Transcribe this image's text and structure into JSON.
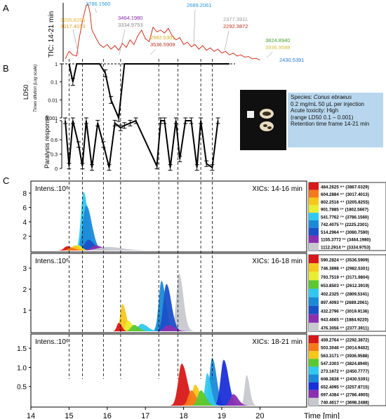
{
  "panel_labels": {
    "a": "A",
    "b": "B",
    "c": "C"
  },
  "info": {
    "species_label": "Species:",
    "species": "Conus ebraeus",
    "dose": "0.2 mg/mL 50 µL per injection",
    "toxicity": "Acute toxicity: High",
    "range": "(range LD50 0.1 – 0.001)",
    "time_frame": "Retention time frame 14-21 min"
  },
  "colors": {
    "tic": "#d03020",
    "axis": "#000000",
    "info_bg": "#b8d7ee"
  },
  "chart_data": [
    {
      "type": "line",
      "panel": "A",
      "ylabel": "TIC: 14-21 min",
      "xlim": [
        14,
        21
      ],
      "x": [
        14.9,
        15.0,
        15.1,
        15.2,
        15.25,
        15.35,
        15.45,
        15.5,
        15.55,
        15.6,
        15.7,
        15.8,
        15.9,
        16.0,
        16.1,
        16.2,
        16.3,
        16.4,
        16.5,
        16.6,
        16.7,
        16.8,
        16.9,
        17.0,
        17.1,
        17.2,
        17.3,
        17.4,
        17.5,
        17.6,
        17.7,
        17.8,
        17.9,
        18.0,
        18.1,
        18.2,
        18.3,
        18.4,
        18.5,
        18.6,
        18.7,
        18.8,
        18.9,
        19.0,
        19.1,
        19.2,
        19.3,
        19.4,
        19.5,
        19.6,
        19.7,
        19.8,
        19.9,
        20.0
      ],
      "y": [
        0.05,
        0.18,
        0.12,
        0.1,
        0.35,
        0.7,
        0.98,
        1.0,
        0.85,
        0.55,
        0.42,
        0.3,
        0.25,
        0.3,
        0.22,
        0.28,
        0.2,
        0.32,
        0.25,
        0.38,
        0.3,
        0.45,
        0.55,
        0.4,
        0.35,
        0.6,
        0.52,
        0.55,
        0.5,
        0.58,
        0.45,
        0.38,
        0.42,
        0.3,
        0.34,
        0.26,
        0.3,
        0.22,
        0.28,
        0.2,
        0.24,
        0.18,
        0.22,
        0.15,
        0.18,
        0.12,
        0.15,
        0.1,
        0.12,
        0.08,
        0.09,
        0.05,
        0.06,
        0.03
      ],
      "annotations": [
        {
          "x": 15.0,
          "label": "3205.8255",
          "color": "#e8b030"
        },
        {
          "x": 15.0,
          "label": "3017.4013",
          "color": "#e0a020"
        },
        {
          "x": 15.55,
          "label": "3786.1560",
          "color": "#2a9ad8"
        },
        {
          "x": 15.95,
          "label": "3464.1980",
          "color": "#8a2aa8"
        },
        {
          "x": 15.95,
          "label": "3334.9753",
          "color": "#8a8a8a"
        },
        {
          "x": 16.4,
          "label": "2982.5301",
          "color": "#d0b020"
        },
        {
          "x": 16.4,
          "label": "3536.5909",
          "color": "#c03020"
        },
        {
          "x": 17.4,
          "label": "2689.2061",
          "color": "#2a9ad8"
        },
        {
          "x": 18.0,
          "label": "2377.3911",
          "color": "#9a9a9a"
        },
        {
          "x": 18.0,
          "label": "2292.3872",
          "color": "#c03020"
        },
        {
          "x": 18.9,
          "label": "3824.8940",
          "color": "#4aa030"
        },
        {
          "x": 18.9,
          "label": "3936.9588",
          "color": "#d0c040"
        },
        {
          "x": 19.25,
          "label": "2430.5391",
          "color": "#2a7ad0"
        }
      ]
    },
    {
      "type": "line",
      "panel": "B-top",
      "ylabel": "LD50",
      "ylabel_sub": "Times dilution (Log scale)",
      "yscale": "log",
      "yticks": [
        "1",
        "0.1",
        "0.01",
        "0.001"
      ],
      "x": [
        15.0,
        15.1,
        15.2,
        15.35,
        15.8,
        15.95,
        16.1,
        16.3,
        16.45,
        17.4,
        18.0,
        18.7,
        19.2
      ],
      "y": [
        1,
        0.1,
        1,
        1,
        1,
        0.3,
        0.01,
        0.001,
        1,
        1,
        1,
        1,
        1
      ]
    },
    {
      "type": "line",
      "panel": "B-bottom",
      "ylabel": "Paralysis response",
      "yticks": [
        "1",
        "0.6",
        "0.3",
        "0"
      ],
      "x": [
        14.9,
        15.0,
        15.1,
        15.25,
        15.35,
        15.45,
        15.6,
        15.75,
        15.9,
        16.05,
        16.2,
        16.35,
        16.45,
        16.6,
        16.75,
        17.3,
        17.4,
        17.5,
        17.65,
        17.8,
        17.9,
        18.05,
        18.2,
        18.35,
        18.45,
        18.6,
        18.75,
        18.9
      ],
      "y": [
        1,
        0.05,
        1,
        0.5,
        0.05,
        1,
        0.02,
        0.95,
        0.5,
        0.02,
        0.95,
        0.85,
        0.9,
        0.95,
        1,
        0.05,
        1,
        1,
        0.02,
        1,
        0.2,
        1,
        1,
        0.02,
        1,
        0.1,
        0.02,
        1
      ]
    },
    {
      "type": "area",
      "panel": "C-1",
      "ylabel": "Intens.:10⁶",
      "title": "XICs: 14-16 min",
      "yticks": [
        "2",
        "4",
        "6",
        "8"
      ],
      "ylim": [
        0,
        8.5
      ],
      "series": [
        {
          "name": "484.2625 ⁸⁺ (3867.0329)",
          "color": "#d81818",
          "center": 14.95,
          "height": 0.6,
          "width": 0.08
        },
        {
          "name": "604.2884 ⁵⁺ (3017.4013)",
          "color": "#f47a1a",
          "center": 15.05,
          "height": 0.4,
          "width": 0.08
        },
        {
          "name": "802.2516 ⁴⁺ (3205.8255)",
          "color": "#f5c81a",
          "center": 15.15,
          "height": 0.7,
          "width": 0.08
        },
        {
          "name": "901.7885 ²⁺ (1802.5667)",
          "color": "#e8ee30",
          "center": 15.22,
          "height": 0.8,
          "width": 0.07
        },
        {
          "name": "541.7762 ⁷⁺ (3786.1560)",
          "color": "#30c8f0",
          "center": 15.38,
          "height": 8.2,
          "width": 0.07
        },
        {
          "name": "742.4075 ³⁺ (2225.2301)",
          "color": "#1a8ad8",
          "center": 15.45,
          "height": 6.3,
          "width": 0.09
        },
        {
          "name": "514.2964 ⁶⁺ (3080.7590)",
          "color": "#1a50c8",
          "center": 15.5,
          "height": 1.5,
          "width": 0.1
        },
        {
          "name": "1155.3772 ³⁺ (3464.1980)",
          "color": "#8a30b0",
          "center": 15.7,
          "height": 0.7,
          "width": 0.12
        },
        {
          "name": "1112.2914 ³⁺ (3334.9753)",
          "color": "#c8c8d0",
          "center": 16.0,
          "height": 0.5,
          "width": 0.25
        }
      ]
    },
    {
      "type": "area",
      "panel": "C-2",
      "ylabel": "Intens.:10⁶",
      "title": "XICs: 16-18 min",
      "yticks": [
        "1",
        "2",
        "3"
      ],
      "ylim": [
        0,
        3.3
      ],
      "series": [
        {
          "name": "590.2824 ⁶⁺ (3536.5909)",
          "color": "#d81818",
          "center": 16.3,
          "height": 0.4,
          "width": 0.05
        },
        {
          "name": "746.3898 ⁴⁺ (2982.5301)",
          "color": "#f5c81a",
          "center": 16.4,
          "height": 1.3,
          "width": 0.06
        },
        {
          "name": "793.7519 ⁴⁺ (3171.9804)",
          "color": "#e8ee30",
          "center": 16.55,
          "height": 0.5,
          "width": 0.07
        },
        {
          "name": "653.8503 ⁴⁺ (2612.3919)",
          "color": "#5ac830",
          "center": 16.7,
          "height": 0.3,
          "width": 0.08
        },
        {
          "name": "402.2325 ⁷⁺ (2809.5341)",
          "color": "#30c8f0",
          "center": 16.9,
          "height": 0.35,
          "width": 0.1
        },
        {
          "name": "897.4093 ³⁺ (2689.2061)",
          "color": "#1a8ad8",
          "center": 17.42,
          "height": 2.4,
          "width": 0.07
        },
        {
          "name": "432.2796 ⁷⁺ (3019.9136)",
          "color": "#1a50c8",
          "center": 17.55,
          "height": 2.25,
          "width": 0.08
        },
        {
          "name": "943.4665 ²⁺ (1884.9220)",
          "color": "#8a30b0",
          "center": 17.6,
          "height": 0.3,
          "width": 0.1
        },
        {
          "name": "476.3056 ⁵⁺ (2377.3911)",
          "color": "#c8c8d0",
          "center": 17.88,
          "height": 2.75,
          "width": 0.07
        }
      ]
    },
    {
      "type": "area",
      "panel": "C-3",
      "ylabel": "Intens.:10⁶",
      "title": "XICs: 18-21 min",
      "yticks": [
        "0.5",
        "1.0",
        "1.5"
      ],
      "ylim": [
        0,
        1.65
      ],
      "series": [
        {
          "name": "459.2764 ⁵⁺ (2292.3872)",
          "color": "#d81818",
          "center": 17.95,
          "height": 1.1,
          "width": 0.09
        },
        {
          "name": "503.3046 ⁶⁺ (3014.9402)",
          "color": "#f47a1a",
          "center": 18.2,
          "height": 0.4,
          "width": 0.08
        },
        {
          "name": "563.3171 ⁷⁺ (3936.9588)",
          "color": "#f5c81a",
          "center": 18.3,
          "height": 0.55,
          "width": 0.08
        },
        {
          "name": "547.3303 ⁷⁺ (3824.8940)",
          "color": "#5ac830",
          "center": 18.45,
          "height": 0.4,
          "width": 0.08
        },
        {
          "name": "273.1672 ⁹⁺ (2450.7777)",
          "color": "#30c8f0",
          "center": 18.62,
          "height": 0.85,
          "width": 0.06
        },
        {
          "name": "608.3838 ⁴⁺ (2430.5391)",
          "color": "#1a8ad8",
          "center": 18.75,
          "height": 1.25,
          "width": 0.07
        },
        {
          "name": "652.4095 ⁵⁺ (3257.8715)",
          "color": "#1a30d8",
          "center": 19.05,
          "height": 1.2,
          "width": 0.08
        },
        {
          "name": "697.4384 ⁴⁺ (2786.4905)",
          "color": "#8a30b0",
          "center": 19.3,
          "height": 0.3,
          "width": 0.08
        },
        {
          "name": "740.4617 ⁵⁺ (3698.2488)",
          "color": "#c8c8d0",
          "center": 19.65,
          "height": 0.8,
          "width": 0.05
        }
      ]
    }
  ],
  "x_axis": {
    "ticks": [
      "14",
      "15",
      "16",
      "17",
      "18",
      "19",
      "20"
    ],
    "tick_values": [
      14,
      15,
      16,
      17,
      18,
      19,
      20
    ],
    "label": "Time [min]"
  },
  "dashed_guides": [
    15.0,
    15.35,
    15.9,
    16.35,
    17.35,
    17.85,
    18.45,
    18.75
  ]
}
